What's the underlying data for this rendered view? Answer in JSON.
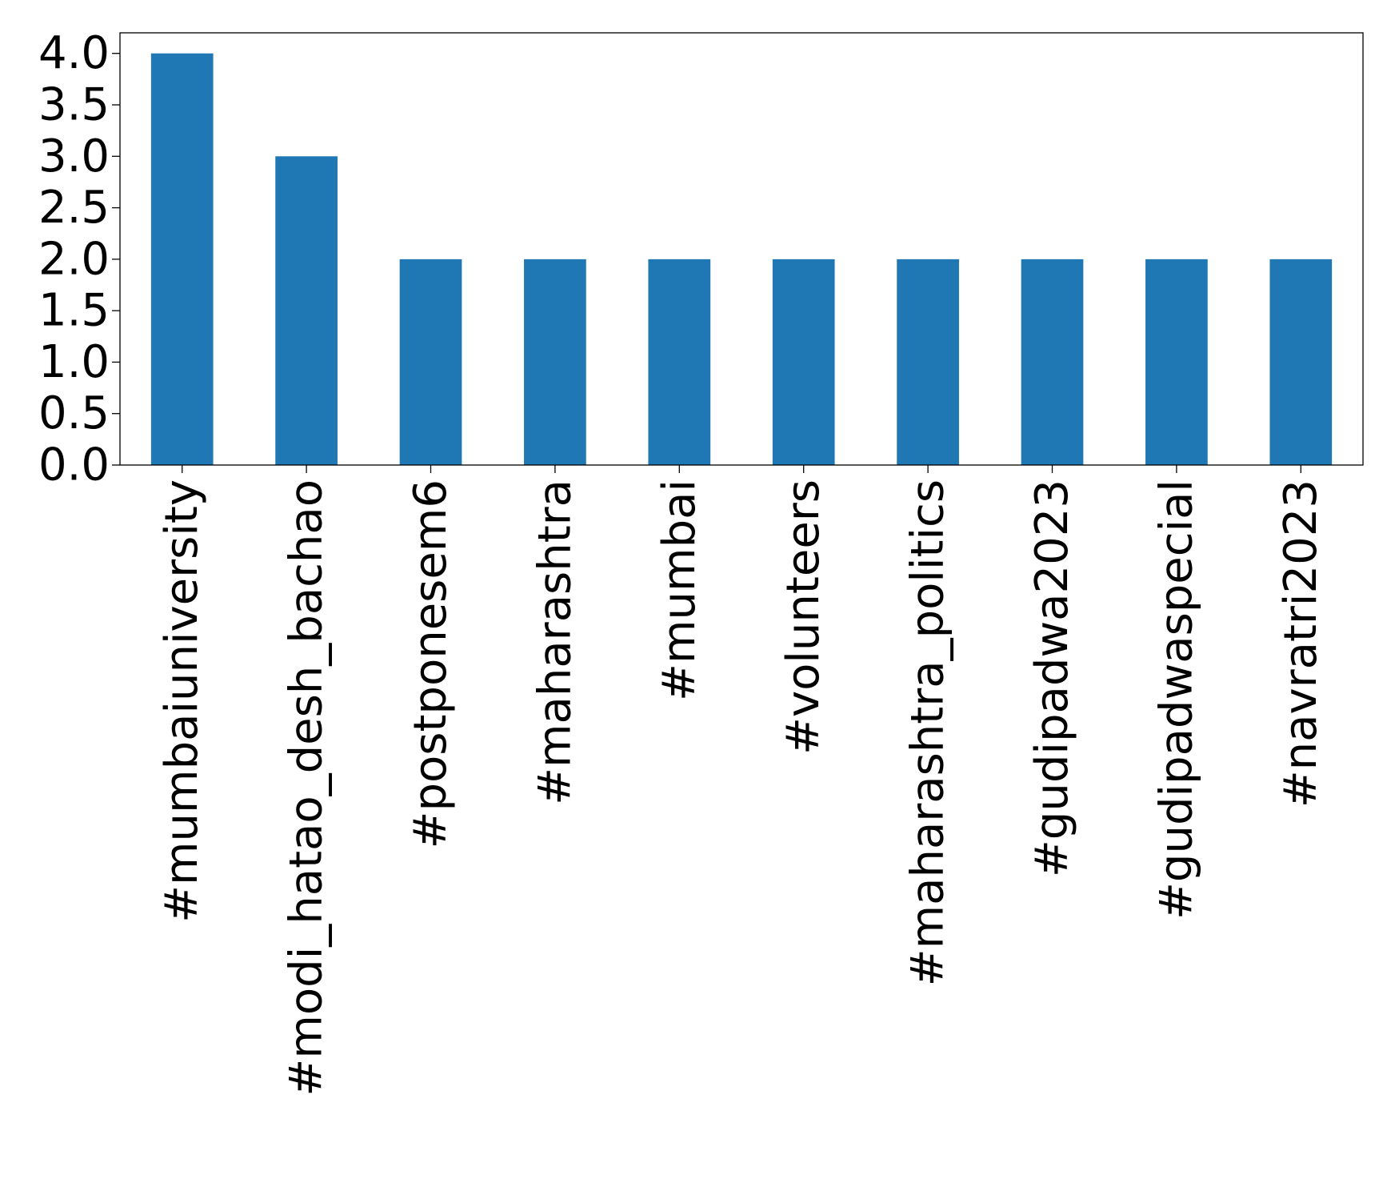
{
  "chart_data": {
    "type": "bar",
    "categories": [
      "#mumbaiuniversity",
      "#modi_hatao_desh_bachao",
      "#postponesem6",
      "#maharashtra",
      "#mumbai",
      "#volunteers",
      "#maharashtra_politics",
      "#gudipadwa2023",
      "#gudipadwaspecial",
      "#navratri2023"
    ],
    "values": [
      4,
      3,
      2,
      2,
      2,
      2,
      2,
      2,
      2,
      2
    ],
    "ylim": [
      0,
      4.2
    ],
    "yticks": [
      "0.0",
      "0.5",
      "1.0",
      "1.5",
      "2.0",
      "2.5",
      "3.0",
      "3.5",
      "4.0"
    ],
    "xlabel": "",
    "ylabel": "",
    "title": "",
    "grid": false,
    "colors": {
      "bar": "#1f77b4"
    }
  }
}
